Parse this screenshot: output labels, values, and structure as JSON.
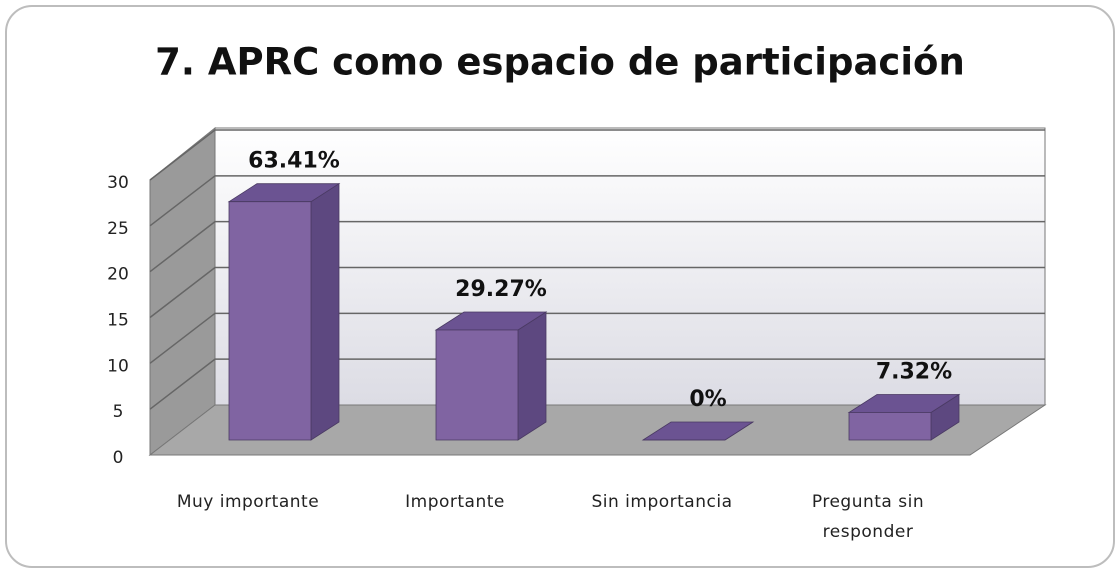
{
  "chart_data": {
    "type": "bar3d",
    "title": "7. APRC como espacio de participación",
    "categories": [
      "Muy importante",
      "Importante",
      "Sin importancia",
      "Pregunta sin responder"
    ],
    "values": [
      26,
      12,
      0,
      3
    ],
    "value_labels": [
      "63.41%",
      "29.27%",
      "0%",
      "7.32%"
    ],
    "color": "#8064a2",
    "ylim": [
      0,
      30
    ],
    "yticks": [
      0,
      5,
      10,
      15,
      20,
      25,
      30
    ],
    "grid": true
  }
}
